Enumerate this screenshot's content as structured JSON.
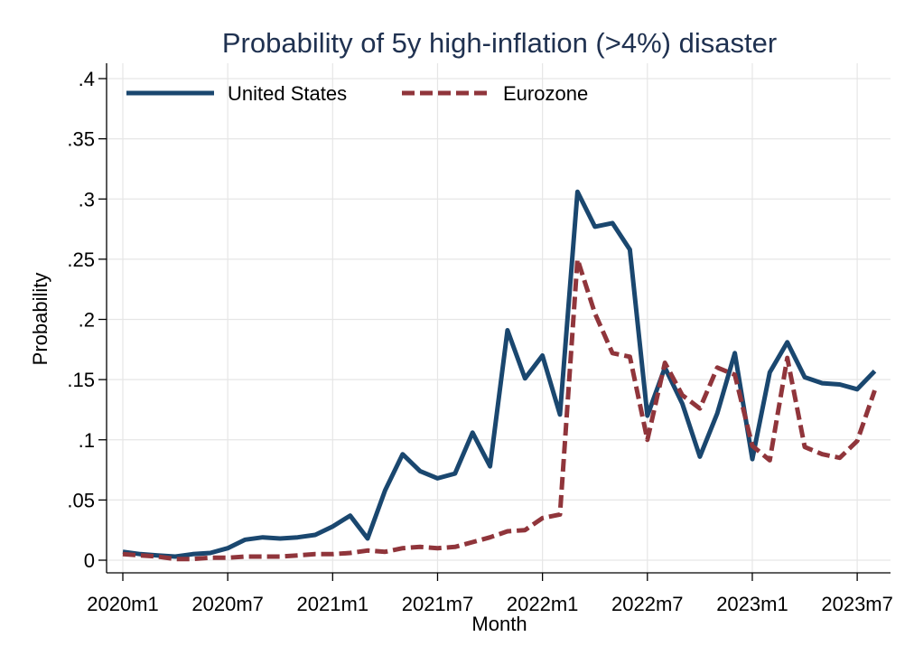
{
  "chart_data": {
    "type": "line",
    "title": "Probability of 5y high-inflation (>4%) disaster",
    "xlabel": "Month",
    "ylabel": "Probability",
    "ylim": [
      0,
      0.4
    ],
    "y_ticks": [
      0,
      0.05,
      0.1,
      0.15,
      0.2,
      0.25,
      0.3,
      0.35,
      0.4
    ],
    "y_tick_labels": [
      "0",
      ".05",
      ".1",
      ".15",
      ".2",
      ".25",
      ".3",
      ".35",
      ".4"
    ],
    "x_ticks": [
      "2020-01",
      "2020-07",
      "2021-01",
      "2021-07",
      "2022-01",
      "2022-07",
      "2023-01",
      "2023-07"
    ],
    "x_tick_labels": [
      "2020m1",
      "2020m7",
      "2021m1",
      "2021m7",
      "2022m1",
      "2022m7",
      "2023m1",
      "2023m7"
    ],
    "grid": true,
    "legend_position": "top-left",
    "x": [
      "2020-01",
      "2020-02",
      "2020-03",
      "2020-04",
      "2020-05",
      "2020-06",
      "2020-07",
      "2020-08",
      "2020-09",
      "2020-10",
      "2020-11",
      "2020-12",
      "2021-01",
      "2021-02",
      "2021-03",
      "2021-04",
      "2021-05",
      "2021-06",
      "2021-07",
      "2021-08",
      "2021-09",
      "2021-10",
      "2021-11",
      "2021-12",
      "2022-01",
      "2022-02",
      "2022-03",
      "2022-04",
      "2022-05",
      "2022-06",
      "2022-07",
      "2022-08",
      "2022-09",
      "2022-10",
      "2022-11",
      "2022-12",
      "2023-01",
      "2023-02",
      "2023-03",
      "2023-04",
      "2023-05",
      "2023-06",
      "2023-07",
      "2023-08"
    ],
    "series": [
      {
        "name": "United States",
        "color": "#1a476f",
        "dash": "solid",
        "values": [
          0.007,
          0.005,
          0.004,
          0.003,
          0.005,
          0.006,
          0.01,
          0.017,
          0.019,
          0.018,
          0.019,
          0.021,
          0.028,
          0.037,
          0.018,
          0.058,
          0.088,
          0.074,
          0.068,
          0.072,
          0.106,
          0.078,
          0.191,
          0.151,
          0.17,
          0.121,
          0.306,
          0.277,
          0.28,
          0.258,
          0.12,
          0.16,
          0.13,
          0.086,
          0.122,
          0.172,
          0.084,
          0.156,
          0.181,
          0.152,
          0.147,
          0.146,
          0.142,
          0.157
        ]
      },
      {
        "name": "Eurozone",
        "color": "#90353b",
        "dash": "dashed",
        "values": [
          0.005,
          0.004,
          0.003,
          0.001,
          0.001,
          0.002,
          0.002,
          0.003,
          0.003,
          0.003,
          0.004,
          0.005,
          0.005,
          0.006,
          0.008,
          0.007,
          0.01,
          0.011,
          0.01,
          0.011,
          0.015,
          0.019,
          0.024,
          0.025,
          0.035,
          0.038,
          0.25,
          0.205,
          0.172,
          0.169,
          0.1,
          0.164,
          0.137,
          0.126,
          0.16,
          0.154,
          0.095,
          0.083,
          0.168,
          0.094,
          0.088,
          0.085,
          0.099,
          0.141
        ]
      }
    ]
  }
}
